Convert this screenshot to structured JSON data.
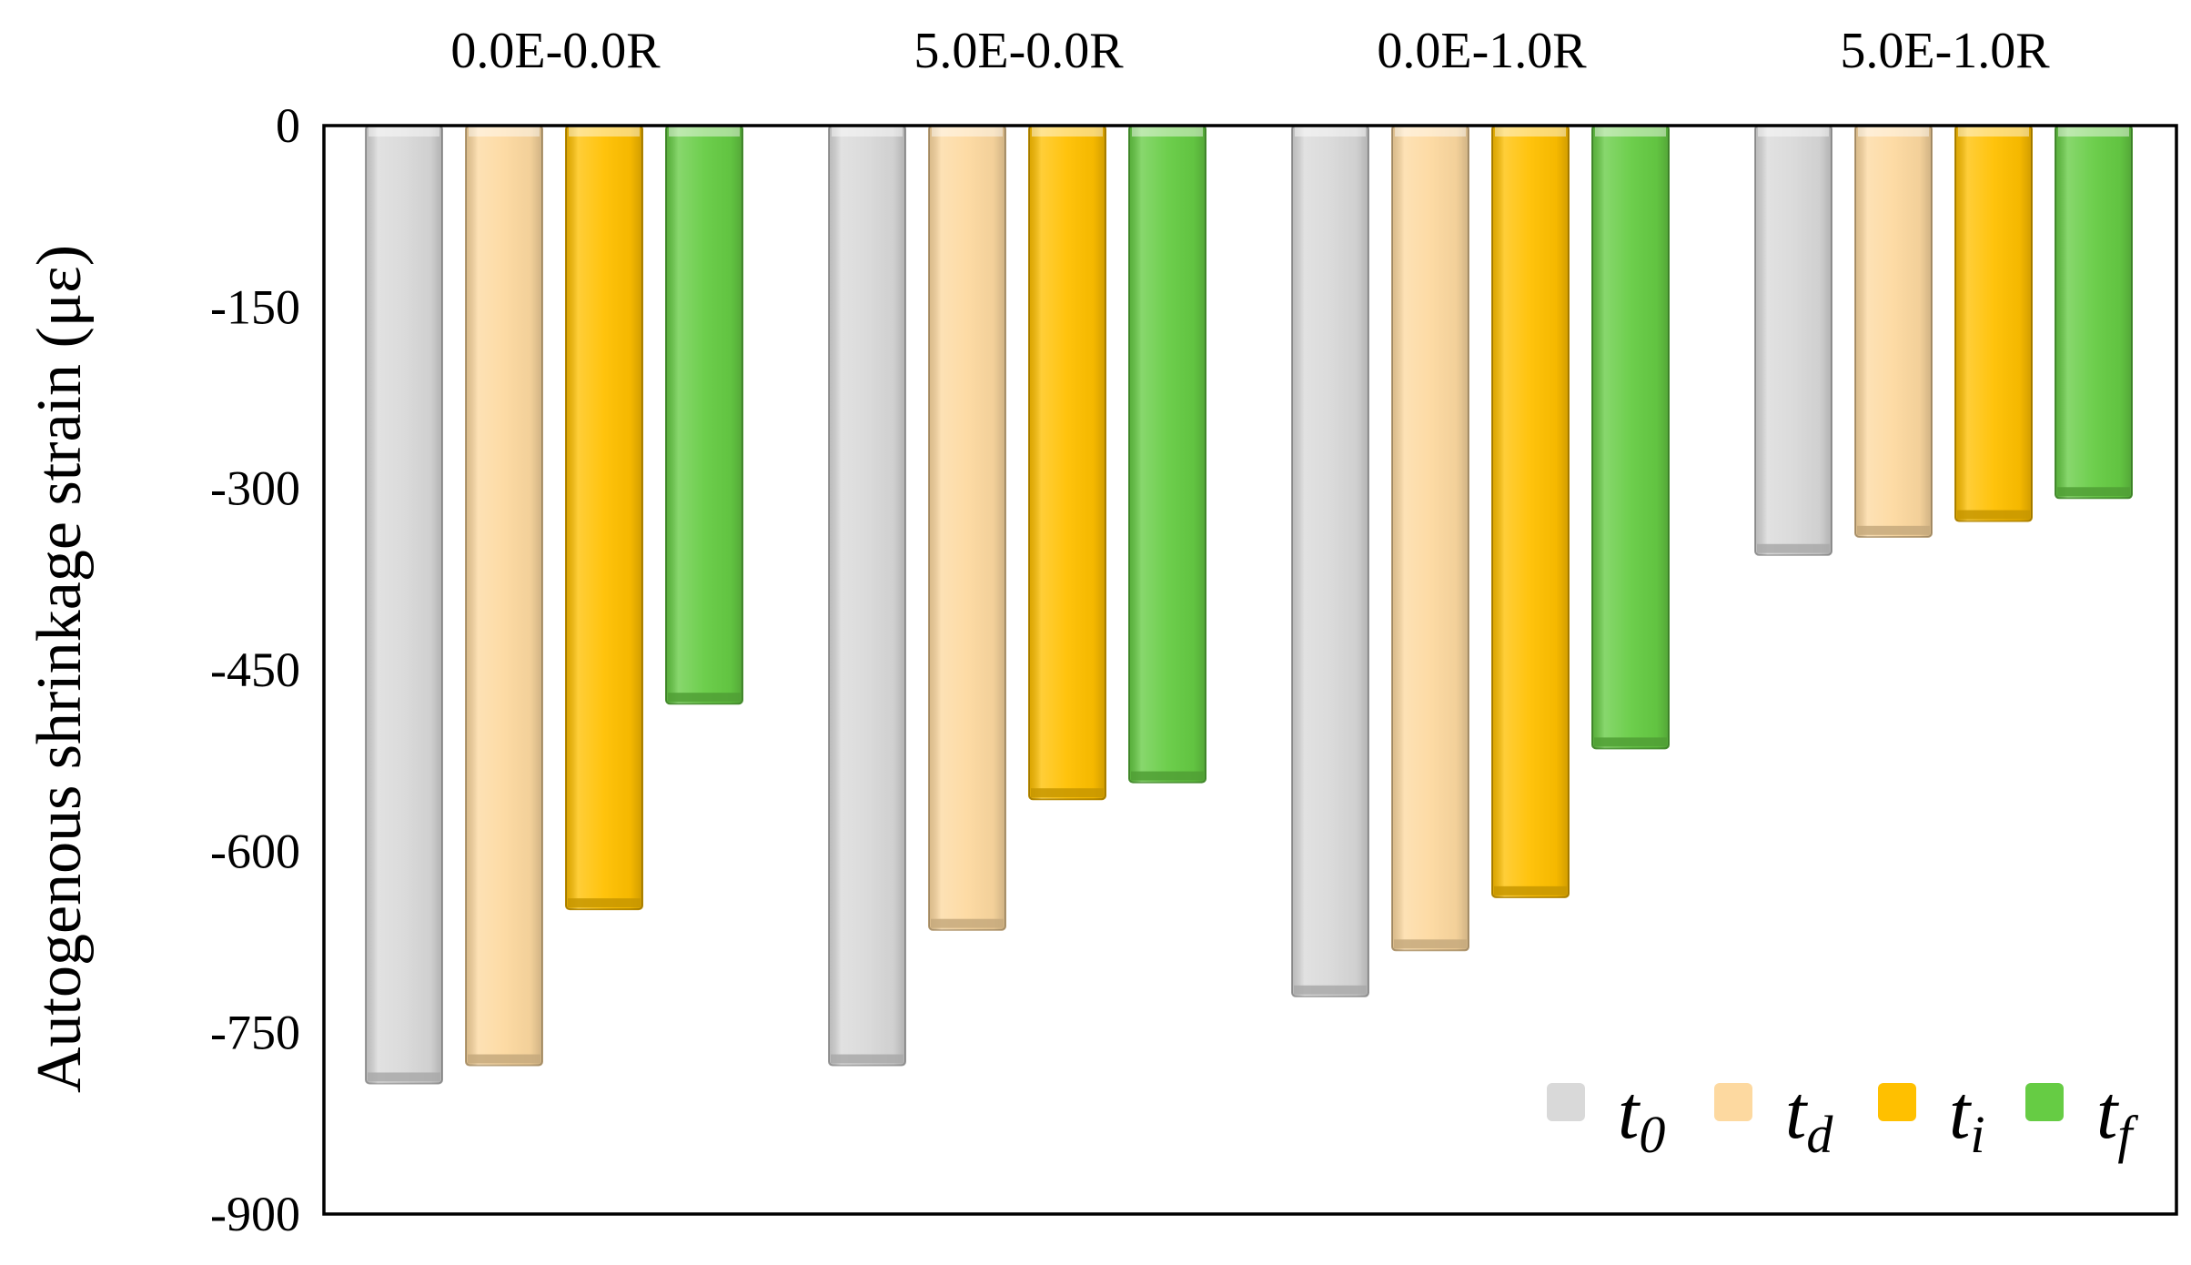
{
  "chart_data": {
    "type": "bar",
    "orientation": "vertical-negative",
    "categories": [
      "0.0E-0.0R",
      "5.0E-0.0R",
      "0.0E-1.0R",
      "5.0E-1.0R"
    ],
    "category_label_position": "top",
    "ylabel": "Autogenous shrinkage strain (με)",
    "xlabel": "",
    "ylim": [
      -900,
      0
    ],
    "yticks": [
      0,
      -150,
      -300,
      -450,
      -600,
      -750,
      -900
    ],
    "ytick_labels": [
      "0",
      "-150",
      "-300",
      "-450",
      "-600",
      "-750",
      "-900"
    ],
    "grid": false,
    "legend_position": "bottom-right",
    "series": [
      {
        "name": "t0",
        "legend_main": "t",
        "legend_sub": "0",
        "color": "#d9d9d9",
        "values": [
          -792,
          -777,
          -720,
          -355
        ]
      },
      {
        "name": "td",
        "legend_main": "t",
        "legend_sub": "d",
        "color": "#fdd9a0",
        "values": [
          -777,
          -665,
          -682,
          -340
        ]
      },
      {
        "name": "ti",
        "legend_main": "t",
        "legend_sub": "i",
        "color": "#ffc000",
        "values": [
          -648,
          -557,
          -638,
          -327
        ]
      },
      {
        "name": "tf",
        "legend_main": "t",
        "legend_sub": "f",
        "color": "#66cc44",
        "values": [
          -478,
          -543,
          -515,
          -308
        ]
      }
    ]
  }
}
